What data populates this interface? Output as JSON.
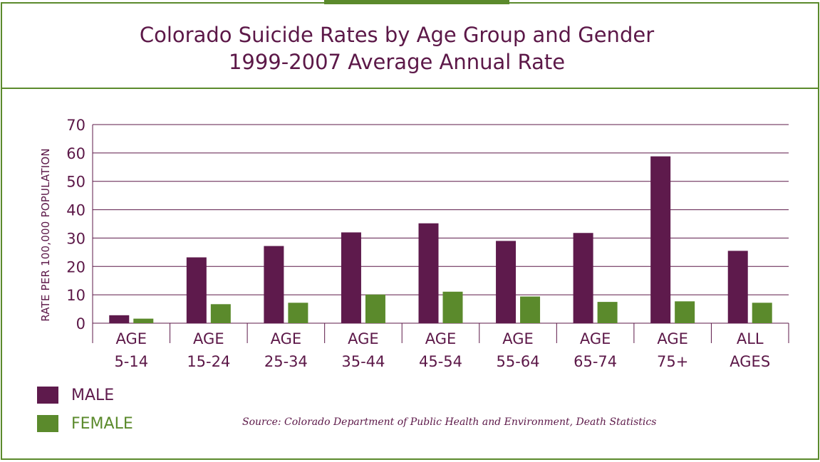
{
  "colors": {
    "border": "#5b8a2c",
    "male": "#5e1a4c",
    "female": "#5b8a2c",
    "text": "#5c1848"
  },
  "chart_data": {
    "type": "bar",
    "title_lines": [
      "Colorado Suicide Rates by Age Group and Gender",
      "1999-2007 Average Annual Rate"
    ],
    "ylabel": "RATE PER 100,000 POPULATION",
    "ylim": [
      0,
      70
    ],
    "yticks": [
      "0",
      "10",
      "20",
      "30",
      "40",
      "50",
      "60",
      "70"
    ],
    "grid": true,
    "legend_position": "bottom-left",
    "categories": [
      [
        "AGE",
        "5-14"
      ],
      [
        "AGE",
        "15-24"
      ],
      [
        "AGE",
        "25-34"
      ],
      [
        "AGE",
        "35-44"
      ],
      [
        "AGE",
        "45-54"
      ],
      [
        "AGE",
        "55-64"
      ],
      [
        "AGE",
        "65-74"
      ],
      [
        "AGE",
        "75+"
      ],
      [
        "ALL",
        "AGES"
      ]
    ],
    "series": [
      {
        "name": "MALE",
        "color": "#5e1a4c",
        "values": [
          2.8,
          23.2,
          27.2,
          32.0,
          35.2,
          29.0,
          31.8,
          58.8,
          25.5
        ]
      },
      {
        "name": "FEMALE",
        "color": "#5b8a2c",
        "values": [
          1.6,
          6.7,
          7.2,
          10.1,
          11.1,
          9.4,
          7.5,
          7.7,
          7.2
        ]
      }
    ],
    "source": "Source: Colorado Department of Public Health and Environment, Death Statistics"
  }
}
